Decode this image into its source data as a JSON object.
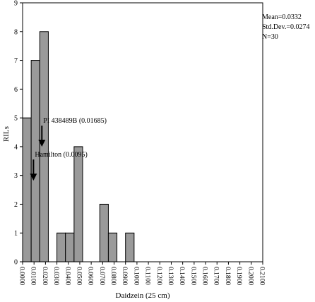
{
  "chart_data": {
    "type": "bar",
    "title": "",
    "xlabel": "Daidzein (25 cm)",
    "ylabel": "RILs",
    "ylim": [
      0,
      9
    ],
    "xlim": [
      0.0,
      0.21
    ],
    "yticks": [
      "0",
      "1",
      "2",
      "3",
      "4",
      "5",
      "6",
      "7",
      "8",
      "9"
    ],
    "xticks": [
      "0.0000",
      "0.0100",
      "0.0200",
      "0.0300",
      "0.0400",
      "0.0500",
      "0.0600",
      "0.0700",
      "0.0800",
      "0.0900",
      "0.1000",
      "0.1100",
      "0.1200",
      "0.1300",
      "0.1400",
      "0.1500",
      "0.1600",
      "0.1700",
      "0.1800",
      "0.1900",
      "0.2000",
      "0.2100"
    ],
    "bin_width": 0.0075,
    "bins": [
      {
        "x0": 0.0,
        "count": 5
      },
      {
        "x0": 0.0075,
        "count": 7
      },
      {
        "x0": 0.015,
        "count": 8
      },
      {
        "x0": 0.0225,
        "count": 0
      },
      {
        "x0": 0.03,
        "count": 1
      },
      {
        "x0": 0.0375,
        "count": 1
      },
      {
        "x0": 0.045,
        "count": 4
      },
      {
        "x0": 0.0525,
        "count": 0
      },
      {
        "x0": 0.06,
        "count": 0
      },
      {
        "x0": 0.0675,
        "count": 2
      },
      {
        "x0": 0.075,
        "count": 1
      },
      {
        "x0": 0.0825,
        "count": 0
      },
      {
        "x0": 0.09,
        "count": 1
      }
    ],
    "stats": {
      "mean": "Mean=0.0332",
      "std": "Std.Dev.=0.0274",
      "n": "N=30"
    },
    "annotations": [
      {
        "text": "PI 438489B (0.01685)",
        "x": 0.01685
      },
      {
        "text": "Hamilton (0.0095)",
        "x": 0.0095
      }
    ],
    "bar_color": "#9a9a9a"
  }
}
